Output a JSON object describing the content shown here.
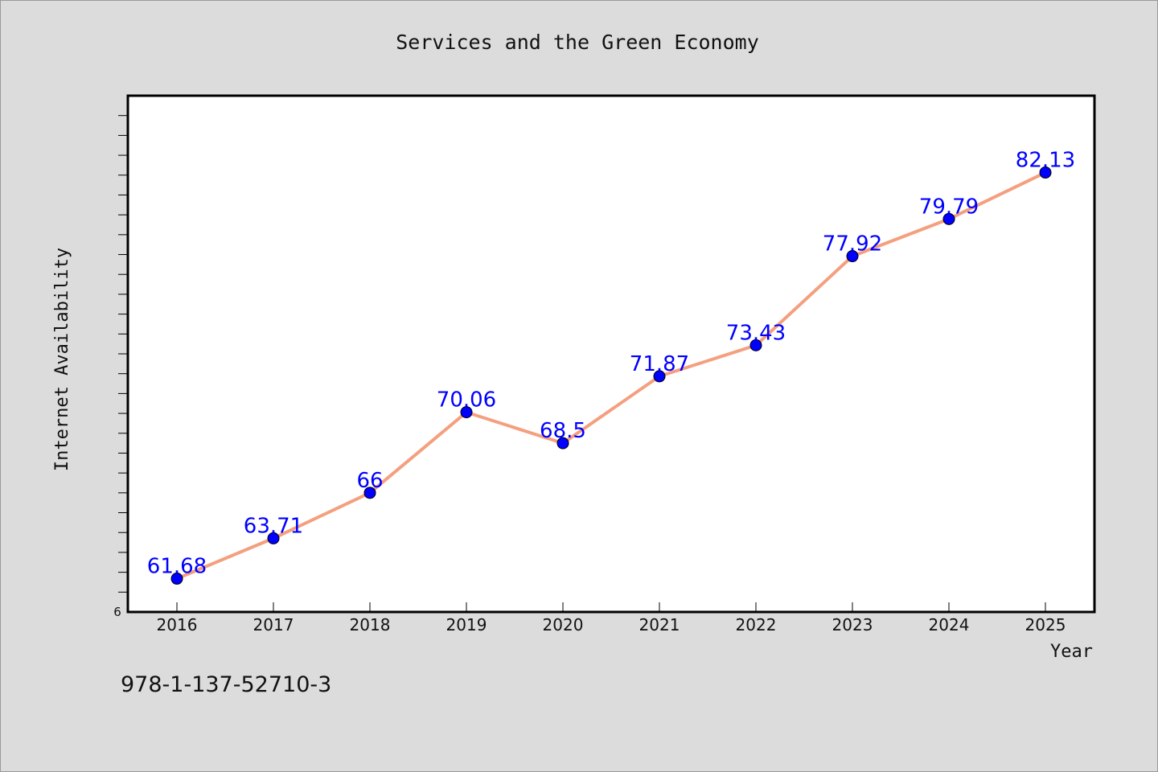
{
  "chart_data": {
    "type": "line",
    "title": "Services and the Green Economy",
    "xlabel": "Year",
    "ylabel": "Internet Availability",
    "categories": [
      "2016",
      "2017",
      "2018",
      "2019",
      "2020",
      "2021",
      "2022",
      "2023",
      "2024",
      "2025"
    ],
    "series": [
      {
        "values": [
          61.68,
          63.71,
          66,
          70.06,
          68.5,
          71.87,
          73.43,
          77.92,
          79.79,
          82.13
        ],
        "data_labels": [
          "61.68",
          "63.71",
          "66",
          "70.06",
          "68.5",
          "71.87",
          "73.43",
          "77.92",
          "79.79",
          "82.13"
        ]
      }
    ],
    "ylim": [
      60,
      86
    ],
    "y_tick_label": "6",
    "grid": false,
    "legend": "none",
    "colors": {
      "line": "#f4a07f",
      "marker": "#0000ff",
      "data_label": "#0000ff",
      "plot_background": "#ffffff",
      "page_background": "#dcdcdc"
    }
  },
  "footer": {
    "isbn": "978-1-137-52710-3"
  }
}
